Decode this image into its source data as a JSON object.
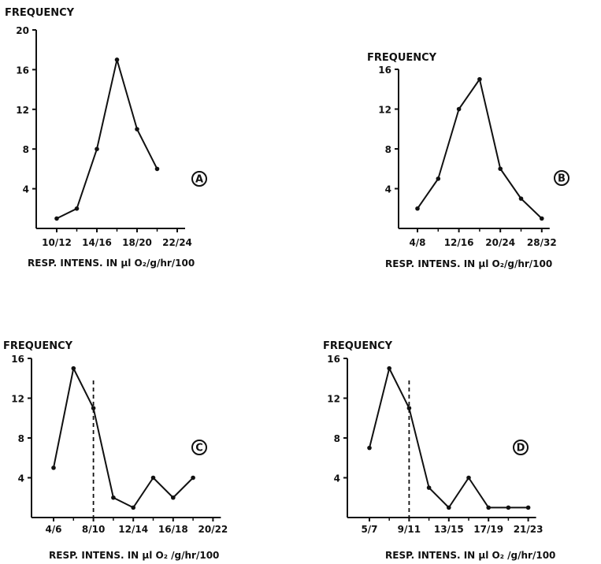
{
  "chart_data": [
    {
      "type": "line",
      "panel": "A",
      "ylabel": "FREQUENCY",
      "xlabel": "RESP. INTENS. IN µl O₂/g/hr/100",
      "yticks": [
        4,
        8,
        12,
        16,
        20
      ],
      "ylim": [
        0,
        20
      ],
      "xtick_labels": [
        "10/12",
        "14/16",
        "18/20",
        "22/24"
      ],
      "x": [
        0,
        1,
        2,
        3,
        4,
        5
      ],
      "y": [
        1,
        2,
        8,
        17,
        10,
        6
      ],
      "xtick_positions": [
        0,
        2,
        4,
        6
      ]
    },
    {
      "type": "line",
      "panel": "B",
      "ylabel": "FREQUENCY",
      "xlabel": "RESP. INTENS. IN µl O₂/g/hr/100",
      "yticks": [
        4,
        8,
        12,
        16
      ],
      "ylim": [
        0,
        16
      ],
      "xtick_labels": [
        "4/8",
        "12/16",
        "20/24",
        "28/32"
      ],
      "x": [
        0,
        1,
        2,
        3,
        4,
        5,
        6
      ],
      "y": [
        2,
        5,
        12,
        15,
        6,
        3,
        1
      ],
      "xtick_positions": [
        0,
        2,
        4,
        6
      ]
    },
    {
      "type": "line",
      "panel": "C",
      "ylabel": "FREQUENCY",
      "xlabel": "RESP. INTENS. IN µl O₂ /g/hr/100",
      "yticks": [
        4,
        8,
        12,
        16
      ],
      "ylim": [
        0,
        16
      ],
      "xtick_labels": [
        "4/6",
        "8/10",
        "12/14",
        "16/18",
        "20/22"
      ],
      "x": [
        0,
        1,
        2,
        3,
        4,
        5,
        6,
        7
      ],
      "y": [
        5,
        15,
        11,
        2,
        1,
        4,
        2,
        4
      ],
      "xtick_positions": [
        0,
        2,
        4,
        6,
        8
      ],
      "dashed_x": 2
    },
    {
      "type": "line",
      "panel": "D",
      "ylabel": "FREQUENCY",
      "xlabel": "RESP. INTENS. IN µl O₂ /g/hr/100",
      "yticks": [
        4,
        8,
        12,
        16
      ],
      "ylim": [
        0,
        16
      ],
      "xtick_labels": [
        "5/7",
        "9/11",
        "13/15",
        "17/19",
        "21/23"
      ],
      "x": [
        0,
        1,
        2,
        3,
        4,
        5,
        6,
        7,
        8
      ],
      "y": [
        7,
        15,
        11,
        3,
        1,
        4,
        1,
        1,
        1
      ],
      "xtick_positions": [
        0,
        2,
        4,
        6,
        8
      ],
      "dashed_x": 2
    }
  ]
}
